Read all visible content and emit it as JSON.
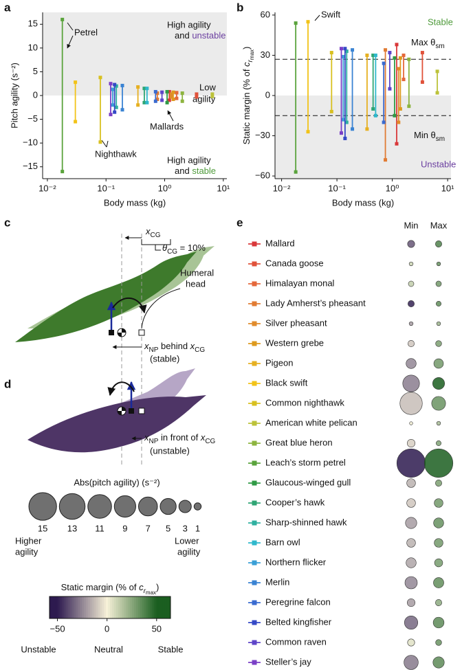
{
  "panel_labels": [
    "a",
    "b",
    "c",
    "d",
    "e"
  ],
  "chart_data": [
    {
      "type": "range",
      "ylabel": "Pitch agility (s⁻²)",
      "xlabel": "Body mass (kg)",
      "xscale": "log",
      "shade": "positive",
      "xlim": [
        0.0083,
        11.5
      ],
      "ylim": [
        -17.5,
        17.5
      ],
      "xticks": [
        {
          "value": 0.01,
          "label": "10⁻²"
        },
        {
          "value": 0.1,
          "label": "10⁻¹"
        },
        {
          "value": 1,
          "label": "10⁰"
        },
        {
          "value": 10,
          "label": "10¹"
        }
      ],
      "yticks": [
        15,
        10,
        5,
        0,
        {
          "value": -5,
          "label": "−5"
        },
        {
          "value": -10,
          "label": "−10"
        },
        {
          "value": -15,
          "label": "−15"
        }
      ],
      "annotations": [
        "Petrel",
        "High agility",
        "and",
        "unstable",
        "Low",
        "agility",
        "Mallards",
        "Nighthawk",
        "High agility",
        "and",
        "stable"
      ],
      "series": [
        {
          "name": "Mallard",
          "color": "#d9383a",
          "x": [
            1.2,
            1.2
          ],
          "values": [
            -1.0,
            0.8
          ]
        },
        {
          "name": "Canada goose",
          "color": "#e0523a",
          "x": [
            3.5,
            3.5
          ],
          "values": [
            -0.3,
            0.3
          ]
        },
        {
          "name": "Himalayan monal",
          "color": "#e4683b",
          "x": [
            1.6,
            1.6
          ],
          "values": [
            -0.6,
            0.6
          ]
        },
        {
          "name": "Lady Amherst’s pheasant",
          "color": "#e17b33",
          "x": [
            0.75,
            0.75
          ],
          "values": [
            -0.8,
            0.5
          ]
        },
        {
          "name": "Silver pheasant",
          "color": "#e08b2c",
          "x": [
            1.3,
            1.3
          ],
          "values": [
            -0.3,
            0.3
          ]
        },
        {
          "name": "Western grebe",
          "color": "#dd9a1e",
          "x": [
            1.4,
            1.4
          ],
          "values": [
            -0.8,
            0.7
          ]
        },
        {
          "name": "Pigeon",
          "color": "#e6b022",
          "x": [
            0.35,
            0.35
          ],
          "values": [
            -2.0,
            1.8
          ]
        },
        {
          "name": "Black swift",
          "color": "#f2c318",
          "x": [
            0.03,
            0.03
          ],
          "values": [
            -5.5,
            2.8
          ]
        },
        {
          "name": "Common nighthawk",
          "color": "#d8c020",
          "x": [
            0.08,
            0.08
          ],
          "values": [
            -9.8,
            3.8
          ]
        },
        {
          "name": "American white pelican",
          "color": "#bcc23a",
          "x": [
            6.5,
            6.5
          ],
          "values": [
            -0.2,
            0.3
          ]
        },
        {
          "name": "Great blue heron",
          "color": "#8db43f",
          "x": [
            2.0,
            2.0
          ],
          "values": [
            -1.2,
            0.5
          ]
        },
        {
          "name": "Leach’s storm petrel",
          "color": "#5aa33c",
          "x": [
            0.018,
            0.018
          ],
          "values": [
            -16,
            16
          ]
        },
        {
          "name": "Glaucous-winged gull",
          "color": "#2f9a45",
          "x": [
            1.1,
            1.1
          ],
          "values": [
            -1.5,
            0.8
          ]
        },
        {
          "name": "Cooper’s hawk",
          "color": "#2fa574",
          "x": [
            0.45,
            0.45
          ],
          "values": [
            -1.5,
            1.5
          ]
        },
        {
          "name": "Sharp-shinned hawk",
          "color": "#2fb0a0",
          "x": [
            0.15,
            0.15
          ],
          "values": [
            -2.5,
            2.0
          ]
        },
        {
          "name": "Barn owl",
          "color": "#2fb8cc",
          "x": [
            0.5,
            0.5
          ],
          "values": [
            -1.5,
            1.5
          ]
        },
        {
          "name": "Northern flicker",
          "color": "#3a9fd6",
          "x": [
            0.13,
            0.13
          ],
          "values": [
            -2.0,
            1.3
          ]
        },
        {
          "name": "Merlin",
          "color": "#3a83d3",
          "x": [
            0.19,
            0.19
          ],
          "values": [
            -3.0,
            2.1
          ]
        },
        {
          "name": "Peregrine falcon",
          "color": "#3a6bd0",
          "x": [
            0.7,
            0.7
          ],
          "values": [
            -1.2,
            0.8
          ]
        },
        {
          "name": "Belted kingfisher",
          "color": "#3549c6",
          "x": [
            0.14,
            0.14
          ],
          "values": [
            -3.5,
            2.3
          ]
        },
        {
          "name": "Common raven",
          "color": "#5e45c8",
          "x": [
            0.9,
            0.9
          ],
          "values": [
            -1.0,
            0.7
          ]
        },
        {
          "name": "Steller’s jay",
          "color": "#7a3fc6",
          "x": [
            0.12,
            0.12
          ],
          "values": [
            -4.0,
            2.5
          ]
        }
      ]
    },
    {
      "type": "range",
      "ylabel": {
        "text": "Static margin (% of ",
        "var": "c",
        "sub": "r",
        "subsub": "max",
        "close": ")"
      },
      "xlabel": "Body mass (kg)",
      "xscale": "log",
      "shade": "negative",
      "xlim": [
        0.0076,
        11.5
      ],
      "ylim": [
        -62,
        62
      ],
      "xticks": [
        {
          "value": 0.01,
          "label": "10⁻²"
        },
        {
          "value": 0.1,
          "label": "10⁻¹"
        },
        {
          "value": 1,
          "label": "10⁰"
        },
        {
          "value": 10,
          "label": "10¹"
        }
      ],
      "yticks": [
        60,
        30,
        0,
        {
          "value": -30,
          "label": "−30"
        },
        {
          "value": -60,
          "label": "−60"
        }
      ],
      "reference_lines": [
        {
          "value": 27,
          "label": "Max θ",
          "sub": "sm"
        },
        {
          "value": -15,
          "label": "Min θ",
          "sub": "sm"
        }
      ],
      "annotations": [
        "Swift",
        "Stable",
        "Unstable"
      ],
      "series": [
        {
          "color": "#d9383a",
          "x": [
            1.2,
            1.2
          ],
          "values": [
            -36,
            38
          ]
        },
        {
          "color": "#e0523a",
          "x": [
            3.5,
            3.5
          ],
          "values": [
            10,
            32
          ]
        },
        {
          "color": "#e4683b",
          "x": [
            1.6,
            1.6
          ],
          "values": [
            12,
            30
          ]
        },
        {
          "color": "#e17b33",
          "x": [
            0.75,
            0.75
          ],
          "values": [
            -48,
            34
          ]
        },
        {
          "color": "#e08b2c",
          "x": [
            1.3,
            1.3
          ],
          "values": [
            -20,
            20
          ]
        },
        {
          "color": "#dd9a1e",
          "x": [
            1.4,
            1.4
          ],
          "values": [
            -10,
            28
          ]
        },
        {
          "color": "#e6b022",
          "x": [
            0.35,
            0.35
          ],
          "values": [
            -25,
            30
          ]
        },
        {
          "color": "#f2c318",
          "x": [
            0.03,
            0.03
          ],
          "values": [
            -27,
            55
          ]
        },
        {
          "color": "#d8c020",
          "x": [
            0.08,
            0.08
          ],
          "values": [
            -12,
            32
          ]
        },
        {
          "color": "#bcc23a",
          "x": [
            6.5,
            6.5
          ],
          "values": [
            2,
            18
          ]
        },
        {
          "color": "#8db43f",
          "x": [
            2.0,
            2.0
          ],
          "values": [
            -8,
            27
          ]
        },
        {
          "color": "#5aa33c",
          "x": [
            0.018,
            0.018
          ],
          "values": [
            -57,
            54
          ]
        },
        {
          "color": "#2f9a45",
          "x": [
            1.1,
            1.1
          ],
          "values": [
            -15,
            28
          ]
        },
        {
          "color": "#2fa574",
          "x": [
            0.45,
            0.45
          ],
          "values": [
            -10,
            30
          ]
        },
        {
          "color": "#2fb0a0",
          "x": [
            0.15,
            0.15
          ],
          "values": [
            -20,
            33
          ]
        },
        {
          "color": "#2fb8cc",
          "x": [
            0.5,
            0.5
          ],
          "values": [
            -15,
            30
          ]
        },
        {
          "color": "#3a9fd6",
          "x": [
            0.13,
            0.13
          ],
          "values": [
            -18,
            29
          ]
        },
        {
          "color": "#3a83d3",
          "x": [
            0.19,
            0.19
          ],
          "values": [
            -25,
            34
          ]
        },
        {
          "color": "#3a6bd0",
          "x": [
            0.7,
            0.7
          ],
          "values": [
            -20,
            24
          ]
        },
        {
          "color": "#3549c6",
          "x": [
            0.14,
            0.14
          ],
          "values": [
            -32,
            35
          ]
        },
        {
          "color": "#5e45c8",
          "x": [
            0.9,
            0.9
          ],
          "values": [
            5,
            32
          ]
        },
        {
          "color": "#7a3fc6",
          "x": [
            0.12,
            0.12
          ],
          "values": [
            -28,
            35
          ]
        }
      ]
    }
  ],
  "panel_c": {
    "x_cg": {
      "var": "x",
      "sub": "CG"
    },
    "theta": {
      "var": "θ",
      "sub": "CG",
      "rest": " = 10%"
    },
    "humeral": [
      "Humeral",
      "head"
    ],
    "np": {
      "var": "x",
      "sub": "NP",
      "mid": " behind ",
      "var2": "x",
      "sub2": "CG"
    },
    "note": "(stable)"
  },
  "panel_d": {
    "np": {
      "var": "x",
      "sub": "NP",
      "mid": " in front of ",
      "var2": "x",
      "sub2": "CG"
    },
    "note": "(unstable)"
  },
  "size_legend": {
    "title": "Abs(pitch agility) (s⁻²)",
    "values": [
      15,
      13,
      11,
      9,
      7,
      5,
      3,
      1
    ],
    "left_label": [
      "Higher",
      "agility"
    ],
    "right_label": [
      "Lower",
      "agility"
    ]
  },
  "colorbar": {
    "title": {
      "text": "Static margin (% of ",
      "var": "c",
      "sub": "r",
      "subsub": "max",
      "close": ")"
    },
    "lim": [
      -58,
      64
    ],
    "ticks": [
      {
        "value": -50,
        "label": "−50"
      },
      0,
      50
    ],
    "colors": [
      "#2d1a4f",
      "#f7f1d8",
      "#1b5e20"
    ],
    "labels": [
      "Unstable",
      "Neutral",
      "Stable"
    ]
  },
  "panel_e": {
    "columns": [
      "Min",
      "Max"
    ]
  }
}
